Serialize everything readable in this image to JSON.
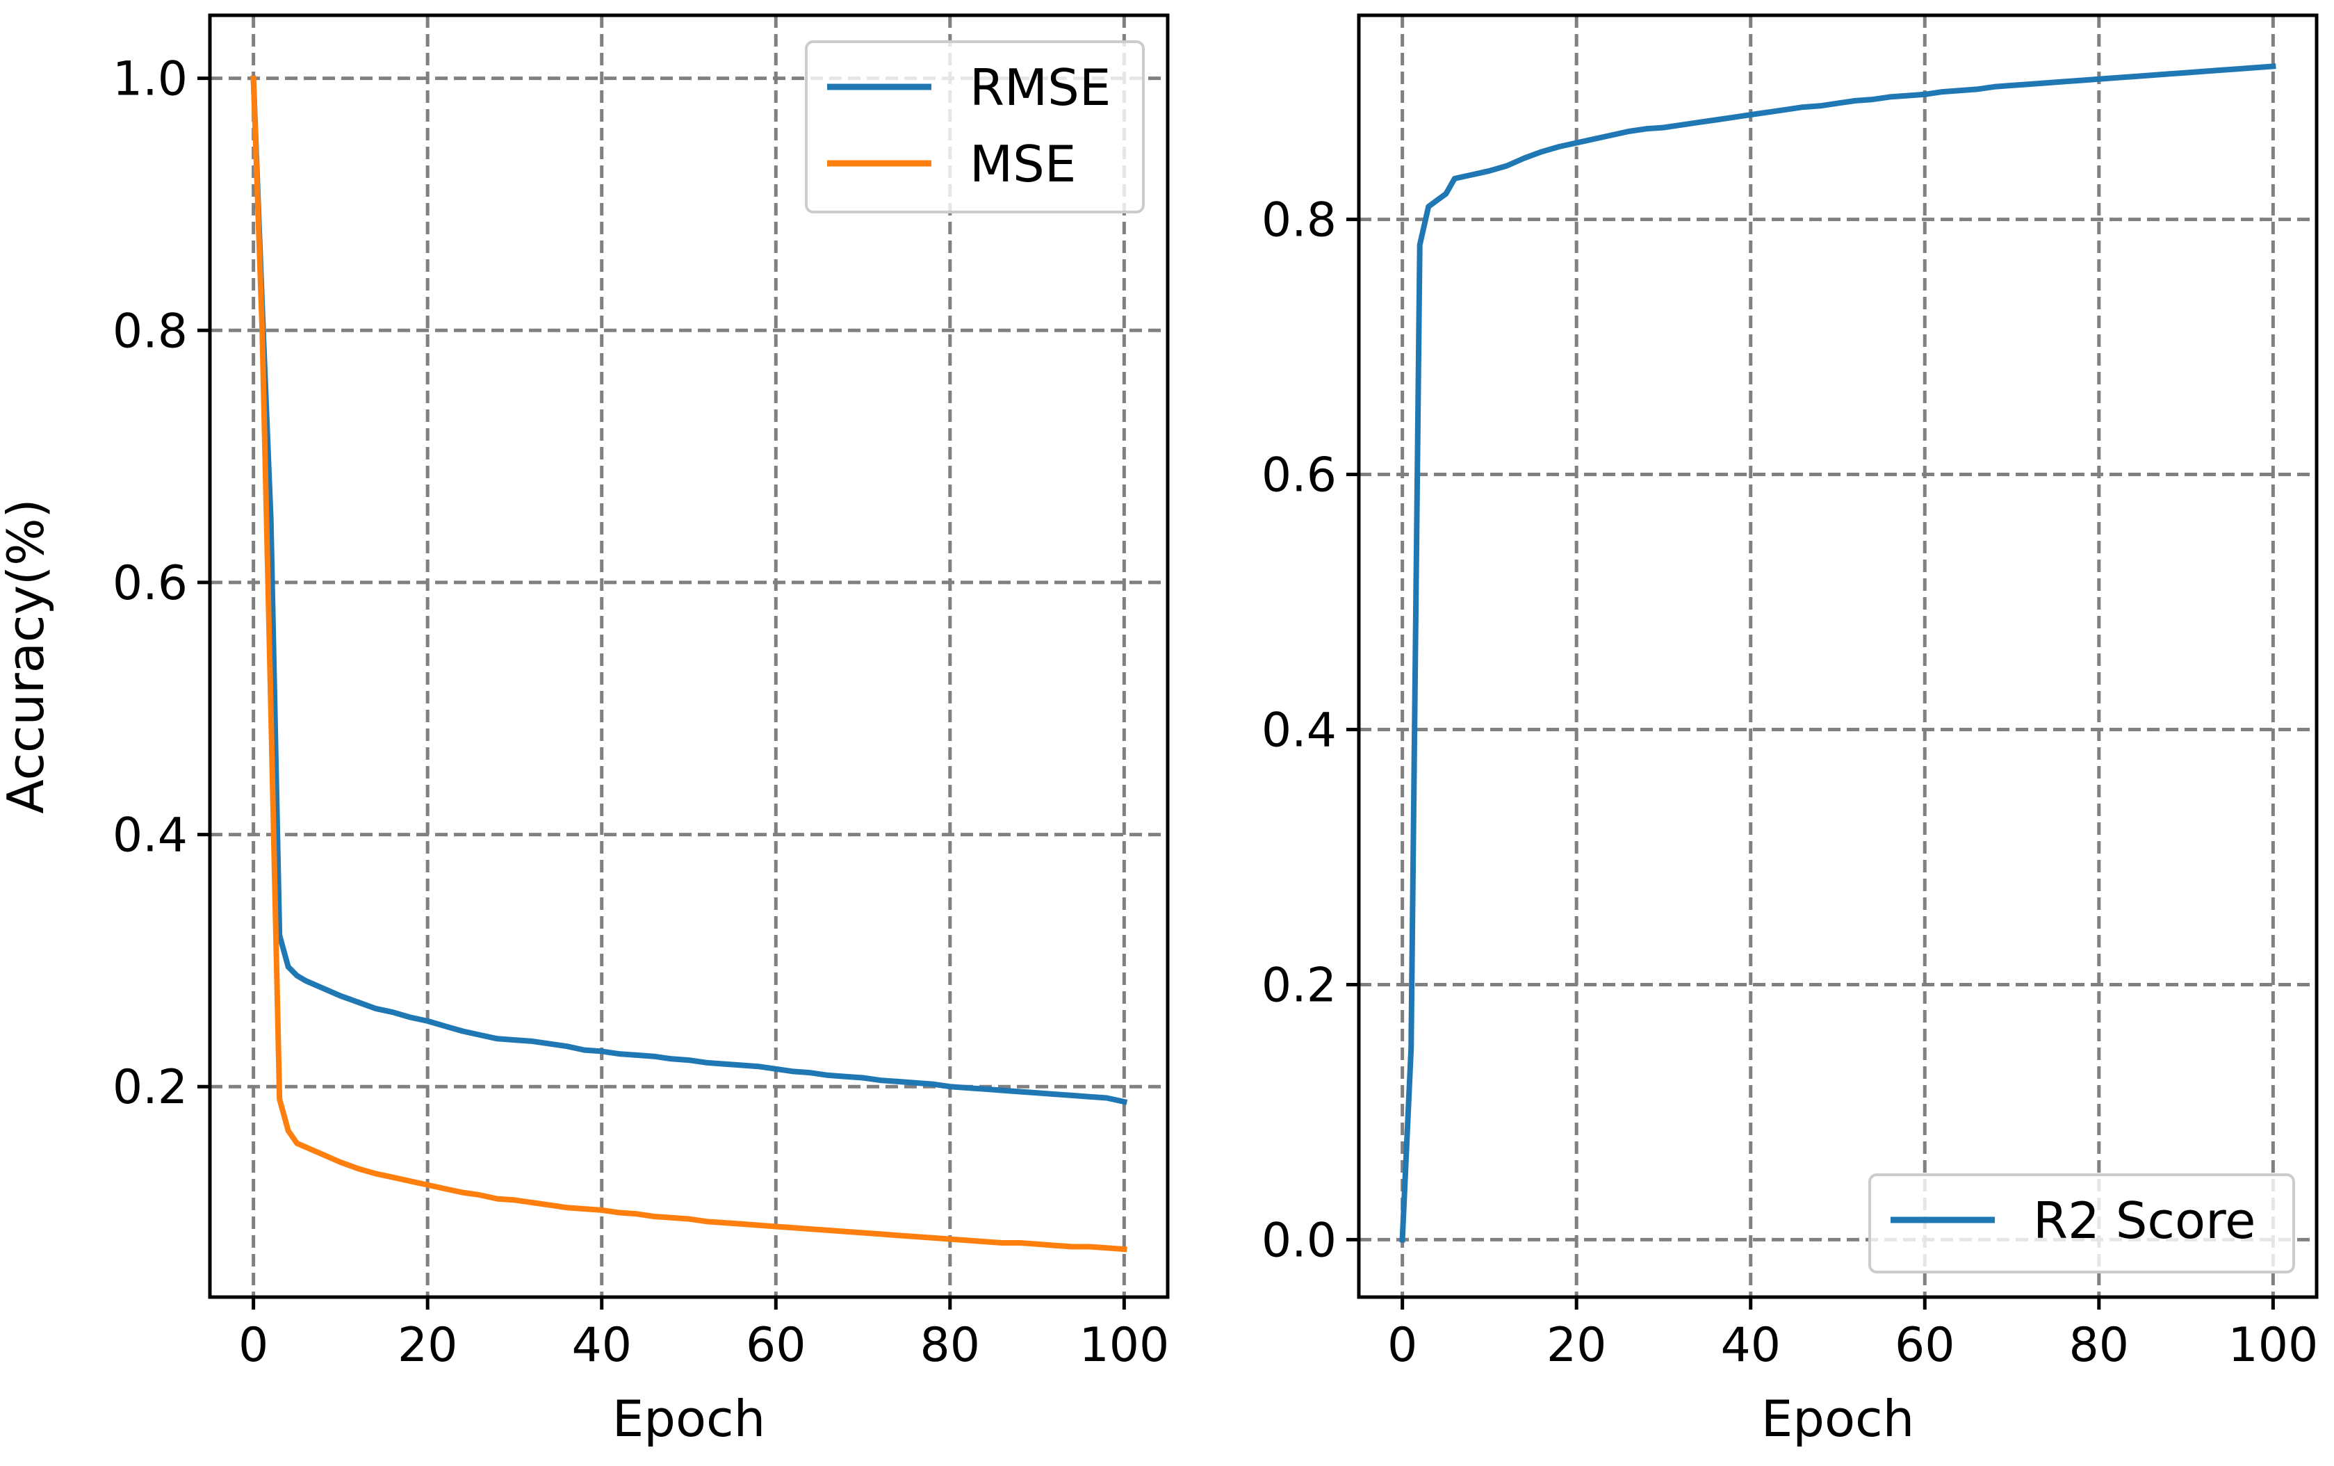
{
  "chart_data": [
    {
      "type": "line",
      "title": "",
      "xlabel": "Epoch",
      "ylabel": "Accuracy(%)",
      "xlim": [
        -5,
        105
      ],
      "ylim": [
        0.033,
        1.05
      ],
      "xticks": [
        0,
        20,
        40,
        60,
        80,
        100
      ],
      "yticks": [
        0.2,
        0.4,
        0.6,
        0.8,
        1.0
      ],
      "xtick_labels": [
        "0",
        "20",
        "40",
        "60",
        "80",
        "100"
      ],
      "ytick_labels": [
        "0.2",
        "0.4",
        "0.6",
        "0.8",
        "1.0"
      ],
      "grid": true,
      "legend_position": "upper right",
      "series": [
        {
          "name": "RMSE",
          "color": "#1f77b4",
          "x": [
            0,
            1,
            2,
            3,
            4,
            5,
            6,
            8,
            10,
            12,
            14,
            16,
            18,
            20,
            22,
            24,
            26,
            28,
            30,
            32,
            34,
            36,
            38,
            40,
            42,
            44,
            46,
            48,
            50,
            52,
            54,
            56,
            58,
            60,
            62,
            64,
            66,
            68,
            70,
            72,
            74,
            76,
            78,
            80,
            82,
            84,
            86,
            88,
            90,
            92,
            94,
            96,
            98,
            100
          ],
          "values": [
            1.0,
            0.82,
            0.65,
            0.32,
            0.295,
            0.288,
            0.284,
            0.278,
            0.272,
            0.267,
            0.262,
            0.259,
            0.255,
            0.252,
            0.248,
            0.244,
            0.241,
            0.238,
            0.237,
            0.236,
            0.234,
            0.232,
            0.229,
            0.228,
            0.226,
            0.225,
            0.224,
            0.222,
            0.221,
            0.219,
            0.218,
            0.217,
            0.216,
            0.214,
            0.212,
            0.211,
            0.209,
            0.208,
            0.207,
            0.205,
            0.204,
            0.203,
            0.202,
            0.2,
            0.199,
            0.198,
            0.197,
            0.196,
            0.195,
            0.194,
            0.193,
            0.192,
            0.191,
            0.188
          ]
        },
        {
          "name": "MSE",
          "color": "#ff7f0e",
          "x": [
            0,
            1,
            2,
            3,
            4,
            5,
            6,
            8,
            10,
            12,
            14,
            16,
            18,
            20,
            22,
            24,
            26,
            28,
            30,
            32,
            34,
            36,
            38,
            40,
            42,
            44,
            46,
            48,
            50,
            52,
            54,
            56,
            58,
            60,
            62,
            64,
            66,
            68,
            70,
            72,
            74,
            76,
            78,
            80,
            82,
            84,
            86,
            88,
            90,
            92,
            94,
            96,
            98,
            100
          ],
          "values": [
            1.0,
            0.8,
            0.5,
            0.19,
            0.165,
            0.155,
            0.152,
            0.146,
            0.14,
            0.135,
            0.131,
            0.128,
            0.125,
            0.122,
            0.119,
            0.116,
            0.114,
            0.111,
            0.11,
            0.108,
            0.106,
            0.104,
            0.103,
            0.102,
            0.1,
            0.099,
            0.097,
            0.096,
            0.095,
            0.093,
            0.092,
            0.091,
            0.09,
            0.089,
            0.088,
            0.087,
            0.086,
            0.085,
            0.084,
            0.083,
            0.082,
            0.081,
            0.08,
            0.079,
            0.078,
            0.077,
            0.076,
            0.076,
            0.075,
            0.074,
            0.073,
            0.073,
            0.072,
            0.071
          ]
        }
      ]
    },
    {
      "type": "line",
      "title": "",
      "xlabel": "Epoch",
      "ylabel": "",
      "xlim": [
        -5,
        105
      ],
      "ylim": [
        -0.045,
        0.96
      ],
      "xticks": [
        0,
        20,
        40,
        60,
        80,
        100
      ],
      "yticks": [
        0.0,
        0.2,
        0.4,
        0.6,
        0.8
      ],
      "xtick_labels": [
        "0",
        "20",
        "40",
        "60",
        "80",
        "100"
      ],
      "ytick_labels": [
        "0.0",
        "0.2",
        "0.4",
        "0.6",
        "0.8"
      ],
      "grid": true,
      "legend_position": "lower right",
      "series": [
        {
          "name": "R2 Score",
          "color": "#1f77b4",
          "x": [
            0,
            1,
            2,
            3,
            4,
            5,
            6,
            8,
            10,
            12,
            14,
            16,
            18,
            20,
            22,
            24,
            26,
            28,
            30,
            32,
            34,
            36,
            38,
            40,
            42,
            44,
            46,
            48,
            50,
            52,
            54,
            56,
            58,
            60,
            62,
            64,
            66,
            68,
            70,
            72,
            74,
            76,
            78,
            80,
            82,
            84,
            86,
            88,
            90,
            92,
            94,
            96,
            98,
            100
          ],
          "values": [
            0.0,
            0.15,
            0.78,
            0.81,
            0.815,
            0.82,
            0.832,
            0.835,
            0.838,
            0.842,
            0.848,
            0.853,
            0.857,
            0.86,
            0.863,
            0.866,
            0.869,
            0.871,
            0.872,
            0.874,
            0.876,
            0.878,
            0.88,
            0.882,
            0.884,
            0.886,
            0.888,
            0.889,
            0.891,
            0.893,
            0.894,
            0.896,
            0.897,
            0.898,
            0.9,
            0.901,
            0.902,
            0.904,
            0.905,
            0.906,
            0.907,
            0.908,
            0.909,
            0.91,
            0.911,
            0.912,
            0.913,
            0.914,
            0.915,
            0.916,
            0.917,
            0.918,
            0.919,
            0.92
          ]
        }
      ]
    }
  ]
}
